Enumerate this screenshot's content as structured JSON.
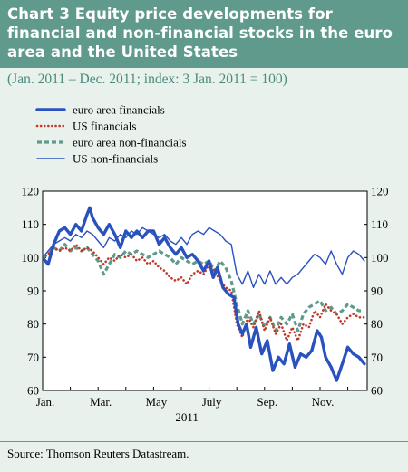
{
  "title": "Chart 3 Equity price developments for financial and non-financial stocks in the euro area and the United States",
  "subtitle": "(Jan. 2011 – Dec. 2011; index: 3 Jan. 2011 = 100)",
  "source": "Source: Thomson Reuters Datastream.",
  "colors": {
    "title_band": "#5f9a8c",
    "subtitle": "#4a8b7c",
    "euro_area_financials": "#2a52be",
    "us_financials": "#c0392b",
    "euro_area_non_financials": "#5f9a8c",
    "us_non_financials": "#2a52be"
  },
  "chart_data": {
    "type": "line",
    "ylim": [
      60,
      120
    ],
    "yticks": [
      "60",
      "70",
      "80",
      "90",
      "100",
      "110",
      "120"
    ],
    "xlim": [
      0,
      11.7
    ],
    "xticks": [
      {
        "label": "Jan.",
        "x": 0
      },
      {
        "label": "Mar.",
        "x": 2
      },
      {
        "label": "May",
        "x": 4
      },
      {
        "label": "July",
        "x": 6
      },
      {
        "label": "Sep.",
        "x": 8
      },
      {
        "label": "Nov.",
        "x": 10
      }
    ],
    "year_label": "2011",
    "legend": [
      "euro area financials",
      "US financials",
      "euro area non-financials",
      "US non-financials"
    ],
    "series": [
      {
        "name": "euro area financials",
        "style": "thick",
        "points": [
          [
            0,
            100
          ],
          [
            0.2,
            98
          ],
          [
            0.4,
            104
          ],
          [
            0.6,
            108
          ],
          [
            0.8,
            109
          ],
          [
            1.0,
            107
          ],
          [
            1.2,
            110
          ],
          [
            1.4,
            108
          ],
          [
            1.6,
            113
          ],
          [
            1.7,
            115
          ],
          [
            1.8,
            112
          ],
          [
            2.0,
            109
          ],
          [
            2.2,
            107
          ],
          [
            2.4,
            110
          ],
          [
            2.6,
            107
          ],
          [
            2.8,
            103
          ],
          [
            3.0,
            108
          ],
          [
            3.2,
            106
          ],
          [
            3.4,
            108
          ],
          [
            3.6,
            106
          ],
          [
            3.8,
            108
          ],
          [
            4.0,
            108
          ],
          [
            4.2,
            104
          ],
          [
            4.4,
            106
          ],
          [
            4.6,
            103
          ],
          [
            4.8,
            101
          ],
          [
            5.0,
            103
          ],
          [
            5.2,
            100
          ],
          [
            5.4,
            101
          ],
          [
            5.6,
            99
          ],
          [
            5.8,
            96
          ],
          [
            6.0,
            99
          ],
          [
            6.15,
            94
          ],
          [
            6.3,
            97
          ],
          [
            6.5,
            91
          ],
          [
            6.7,
            89
          ],
          [
            6.9,
            88
          ],
          [
            7.05,
            80
          ],
          [
            7.2,
            77
          ],
          [
            7.35,
            80
          ],
          [
            7.5,
            73
          ],
          [
            7.7,
            79
          ],
          [
            7.9,
            71
          ],
          [
            8.1,
            75
          ],
          [
            8.3,
            66
          ],
          [
            8.5,
            70
          ],
          [
            8.7,
            68
          ],
          [
            8.9,
            74
          ],
          [
            9.1,
            67
          ],
          [
            9.3,
            71
          ],
          [
            9.5,
            70
          ],
          [
            9.7,
            72
          ],
          [
            9.9,
            78
          ],
          [
            10.05,
            76
          ],
          [
            10.2,
            70
          ],
          [
            10.4,
            67
          ],
          [
            10.6,
            63
          ],
          [
            10.8,
            68
          ],
          [
            11.0,
            73
          ],
          [
            11.2,
            71
          ],
          [
            11.4,
            70
          ],
          [
            11.6,
            68
          ]
        ]
      },
      {
        "name": "US financials",
        "style": "dotted",
        "points": [
          [
            0,
            100
          ],
          [
            0.2,
            101
          ],
          [
            0.4,
            103
          ],
          [
            0.6,
            102
          ],
          [
            0.8,
            103
          ],
          [
            1.0,
            102
          ],
          [
            1.2,
            104
          ],
          [
            1.4,
            102
          ],
          [
            1.6,
            103
          ],
          [
            1.8,
            102
          ],
          [
            2.0,
            100
          ],
          [
            2.2,
            98
          ],
          [
            2.4,
            100
          ],
          [
            2.6,
            99
          ],
          [
            2.8,
            101
          ],
          [
            3.0,
            100
          ],
          [
            3.2,
            101
          ],
          [
            3.4,
            99
          ],
          [
            3.6,
            100
          ],
          [
            3.8,
            98
          ],
          [
            4.0,
            99
          ],
          [
            4.2,
            97
          ],
          [
            4.4,
            96
          ],
          [
            4.6,
            94
          ],
          [
            4.8,
            93
          ],
          [
            5.0,
            94
          ],
          [
            5.2,
            92
          ],
          [
            5.4,
            95
          ],
          [
            5.6,
            96
          ],
          [
            5.8,
            95
          ],
          [
            6.0,
            98
          ],
          [
            6.2,
            96
          ],
          [
            6.4,
            93
          ],
          [
            6.6,
            91
          ],
          [
            6.8,
            90
          ],
          [
            7.0,
            80
          ],
          [
            7.2,
            76
          ],
          [
            7.4,
            82
          ],
          [
            7.6,
            79
          ],
          [
            7.8,
            84
          ],
          [
            8.0,
            78
          ],
          [
            8.2,
            82
          ],
          [
            8.4,
            77
          ],
          [
            8.6,
            80
          ],
          [
            8.8,
            75
          ],
          [
            9.0,
            79
          ],
          [
            9.2,
            75
          ],
          [
            9.4,
            80
          ],
          [
            9.6,
            79
          ],
          [
            9.8,
            84
          ],
          [
            10.0,
            82
          ],
          [
            10.2,
            86
          ],
          [
            10.4,
            84
          ],
          [
            10.6,
            83
          ],
          [
            10.8,
            80
          ],
          [
            11.0,
            82
          ],
          [
            11.2,
            83
          ],
          [
            11.4,
            82
          ],
          [
            11.6,
            82
          ]
        ]
      },
      {
        "name": "euro area non-financials",
        "style": "dashed",
        "points": [
          [
            0,
            100
          ],
          [
            0.2,
            101
          ],
          [
            0.4,
            103
          ],
          [
            0.6,
            102
          ],
          [
            0.8,
            104
          ],
          [
            1.0,
            102
          ],
          [
            1.2,
            103
          ],
          [
            1.4,
            102
          ],
          [
            1.6,
            103
          ],
          [
            1.8,
            101
          ],
          [
            2.0,
            99
          ],
          [
            2.2,
            95
          ],
          [
            2.4,
            98
          ],
          [
            2.6,
            101
          ],
          [
            2.8,
            100
          ],
          [
            3.0,
            102
          ],
          [
            3.2,
            101
          ],
          [
            3.4,
            102
          ],
          [
            3.6,
            101
          ],
          [
            3.8,
            100
          ],
          [
            4.0,
            101
          ],
          [
            4.2,
            102
          ],
          [
            4.4,
            101
          ],
          [
            4.6,
            100
          ],
          [
            4.8,
            98
          ],
          [
            5.0,
            100
          ],
          [
            5.2,
            99
          ],
          [
            5.4,
            98
          ],
          [
            5.6,
            99
          ],
          [
            5.8,
            98
          ],
          [
            6.0,
            99
          ],
          [
            6.2,
            96
          ],
          [
            6.4,
            99
          ],
          [
            6.6,
            97
          ],
          [
            6.8,
            93
          ],
          [
            7.0,
            86
          ],
          [
            7.2,
            80
          ],
          [
            7.4,
            84
          ],
          [
            7.6,
            80
          ],
          [
            7.8,
            83
          ],
          [
            8.0,
            79
          ],
          [
            8.2,
            82
          ],
          [
            8.4,
            78
          ],
          [
            8.6,
            82
          ],
          [
            8.8,
            80
          ],
          [
            9.0,
            83
          ],
          [
            9.2,
            78
          ],
          [
            9.4,
            83
          ],
          [
            9.6,
            85
          ],
          [
            9.8,
            86
          ],
          [
            10.0,
            87
          ],
          [
            10.2,
            84
          ],
          [
            10.4,
            85
          ],
          [
            10.6,
            83
          ],
          [
            10.8,
            84
          ],
          [
            11.0,
            86
          ],
          [
            11.2,
            85
          ],
          [
            11.4,
            84
          ],
          [
            11.6,
            84
          ]
        ]
      },
      {
        "name": "US non-financials",
        "style": "thin",
        "points": [
          [
            0,
            100
          ],
          [
            0.2,
            102
          ],
          [
            0.4,
            104
          ],
          [
            0.6,
            105
          ],
          [
            0.8,
            106
          ],
          [
            1.0,
            105
          ],
          [
            1.2,
            107
          ],
          [
            1.4,
            106
          ],
          [
            1.6,
            108
          ],
          [
            1.8,
            107
          ],
          [
            2.0,
            105
          ],
          [
            2.2,
            103
          ],
          [
            2.4,
            106
          ],
          [
            2.6,
            105
          ],
          [
            2.8,
            107
          ],
          [
            3.0,
            106
          ],
          [
            3.2,
            108
          ],
          [
            3.4,
            107
          ],
          [
            3.6,
            109
          ],
          [
            3.8,
            108
          ],
          [
            4.0,
            107
          ],
          [
            4.2,
            106
          ],
          [
            4.4,
            107
          ],
          [
            4.6,
            105
          ],
          [
            4.8,
            104
          ],
          [
            5.0,
            106
          ],
          [
            5.2,
            104
          ],
          [
            5.4,
            107
          ],
          [
            5.6,
            108
          ],
          [
            5.8,
            107
          ],
          [
            6.0,
            109
          ],
          [
            6.2,
            108
          ],
          [
            6.4,
            107
          ],
          [
            6.6,
            105
          ],
          [
            6.8,
            104
          ],
          [
            7.0,
            95
          ],
          [
            7.2,
            92
          ],
          [
            7.4,
            96
          ],
          [
            7.6,
            91
          ],
          [
            7.8,
            95
          ],
          [
            8.0,
            92
          ],
          [
            8.2,
            96
          ],
          [
            8.4,
            92
          ],
          [
            8.6,
            94
          ],
          [
            8.8,
            92
          ],
          [
            9.0,
            94
          ],
          [
            9.2,
            95
          ],
          [
            9.4,
            97
          ],
          [
            9.6,
            99
          ],
          [
            9.8,
            101
          ],
          [
            10.0,
            100
          ],
          [
            10.2,
            98
          ],
          [
            10.4,
            102
          ],
          [
            10.6,
            98
          ],
          [
            10.8,
            95
          ],
          [
            11.0,
            100
          ],
          [
            11.2,
            102
          ],
          [
            11.4,
            101
          ],
          [
            11.6,
            99
          ]
        ]
      }
    ]
  }
}
